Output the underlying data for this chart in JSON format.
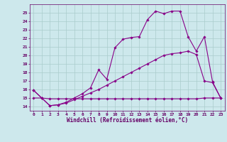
{
  "xlabel": "Windchill (Refroidissement éolien,°C)",
  "background_color": "#cde8ec",
  "line_color": "#880088",
  "grid_color": "#aacccc",
  "xlim": [
    -0.5,
    23.5
  ],
  "ylim": [
    13.5,
    26.0
  ],
  "yticks": [
    14,
    15,
    16,
    17,
    18,
    19,
    20,
    21,
    22,
    23,
    24,
    25
  ],
  "xticks": [
    0,
    1,
    2,
    3,
    4,
    5,
    6,
    7,
    8,
    9,
    10,
    11,
    12,
    13,
    14,
    15,
    16,
    17,
    18,
    19,
    20,
    21,
    22,
    23
  ],
  "line1_x": [
    0,
    1,
    2,
    3,
    4,
    5,
    6,
    7,
    8,
    9,
    10,
    11,
    12,
    13,
    14,
    15,
    16,
    17,
    18,
    19,
    20,
    21,
    22,
    23
  ],
  "line1_y": [
    15.9,
    15.0,
    14.1,
    14.2,
    14.4,
    14.8,
    15.2,
    15.6,
    16.0,
    16.5,
    17.0,
    17.5,
    18.0,
    18.5,
    19.0,
    19.5,
    20.0,
    20.2,
    20.3,
    20.5,
    20.1,
    17.0,
    16.8,
    15.0
  ],
  "line2_x": [
    0,
    1,
    2,
    3,
    4,
    5,
    6,
    7,
    8,
    9,
    10,
    11,
    12,
    13,
    14,
    15,
    16,
    17,
    18,
    19,
    20,
    21,
    22,
    23
  ],
  "line2_y": [
    15.9,
    15.0,
    14.1,
    14.2,
    14.5,
    15.0,
    15.5,
    16.2,
    18.3,
    17.2,
    20.9,
    21.9,
    22.1,
    22.2,
    24.2,
    25.2,
    24.9,
    25.2,
    25.2,
    22.2,
    20.5,
    22.2,
    16.9,
    15.0
  ],
  "line3_x": [
    0,
    1,
    2,
    3,
    4,
    5,
    6,
    7,
    8,
    9,
    10,
    11,
    12,
    13,
    14,
    15,
    16,
    17,
    18,
    19,
    20,
    21,
    22,
    23
  ],
  "line3_y": [
    15.0,
    15.0,
    14.9,
    14.9,
    14.9,
    14.9,
    14.9,
    14.9,
    14.9,
    14.9,
    14.9,
    14.9,
    14.9,
    14.9,
    14.9,
    14.9,
    14.9,
    14.9,
    14.9,
    14.9,
    14.9,
    15.0,
    15.0,
    15.0
  ]
}
